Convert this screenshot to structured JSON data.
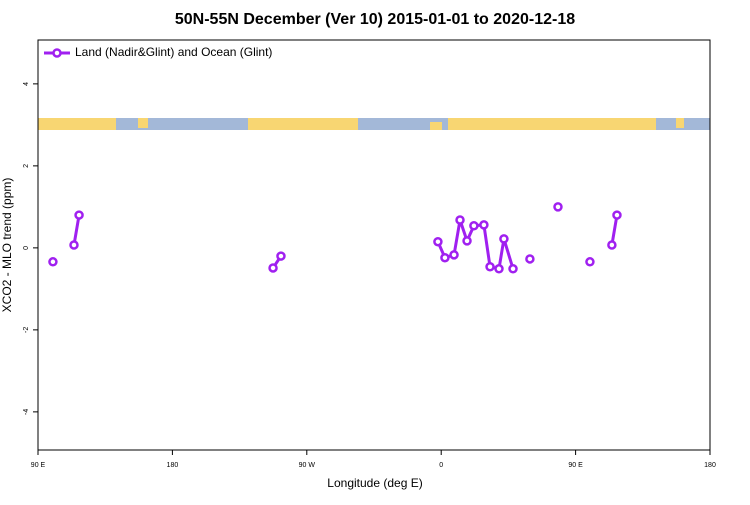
{
  "chart_data": {
    "type": "line",
    "title": "50N-55N December (Ver 10)   2015-01-01 to 2020-12-18",
    "x_label": "Longitude (deg E)",
    "y_label": "XCO2 - MLO trend (ppm)",
    "legend_position": "top-left",
    "x": [
      100.0,
      null,
      114.1,
      117.5,
      null,
      247.4,
      252.7,
      null,
      357.8,
      362.5,
      368.6,
      372.6,
      377.3,
      381.9,
      388.6,
      392.7,
      398.7,
      402.0,
      408.1,
      null,
      419.4,
      null,
      438.2,
      null,
      459.6,
      null,
      474.3,
      477.7
    ],
    "series": [
      {
        "name": "Land (Nadir&Glint) and Ocean (Glint)",
        "color": "#a020f0",
        "values": [
          -0.34,
          null,
          0.07,
          0.8,
          null,
          -0.49,
          -0.2,
          null,
          0.15,
          -0.24,
          -0.17,
          0.68,
          0.17,
          0.54,
          0.56,
          -0.46,
          -0.51,
          0.22,
          -0.51,
          null,
          -0.27,
          null,
          1.0,
          null,
          -0.34,
          null,
          0.07,
          0.8
        ]
      }
    ],
    "xlim": [
      90,
      540
    ],
    "xticks": [
      {
        "value": 90,
        "label": "90 E"
      },
      180,
      {
        "value": 270,
        "label": "90 W"
      },
      {
        "value": 360,
        "label": "0"
      },
      {
        "value": 450,
        "label": "90 E"
      },
      {
        "value": 540,
        "label": "180"
      }
    ],
    "ylim": [
      -4.93,
      5.07
    ],
    "yticks": [
      -4,
      -2,
      0,
      2,
      4
    ]
  }
}
